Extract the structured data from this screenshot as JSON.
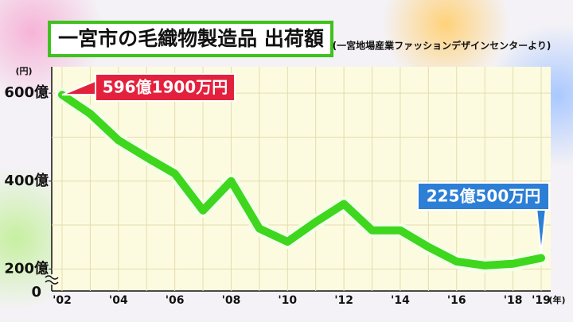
{
  "chart_data": {
    "type": "line",
    "title": "一宮市の毛織物製造品 出荷額",
    "subtitle": "(一宮地場産業ファッションデザインセンターより)",
    "y_unit": "(円)",
    "x_unit": "(年)",
    "axis_break_label": "0",
    "categories": [
      "'02",
      null,
      "'04",
      null,
      "'06",
      null,
      "'08",
      null,
      "'10",
      null,
      "'12",
      null,
      "'14",
      null,
      "'16",
      null,
      "'18",
      "'19"
    ],
    "series": [
      {
        "color": "#3fd61e",
        "values": [
          596.19,
          553,
          493,
          454,
          417,
          333,
          400,
          292,
          262,
          307,
          348,
          288,
          288,
          250,
          217,
          208,
          212,
          225.05
        ],
        "value_labels": [
          "596億1900万円",
          null,
          null,
          null,
          null,
          null,
          null,
          null,
          null,
          null,
          null,
          null,
          null,
          null,
          null,
          null,
          null,
          "225億500万円"
        ]
      }
    ],
    "ylim": [
      150,
      660
    ],
    "yticks": [
      {
        "value": 200,
        "label": "200億"
      },
      {
        "value": 400,
        "label": "400億"
      },
      {
        "value": 600,
        "label": "600億"
      }
    ],
    "yminor": [
      300,
      500
    ],
    "grid": true
  }
}
